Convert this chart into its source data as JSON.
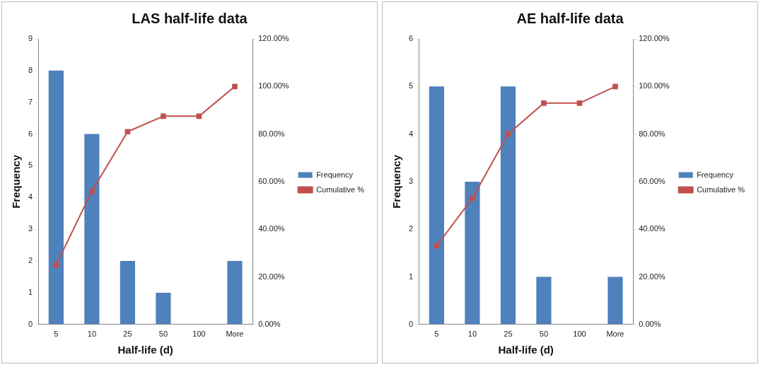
{
  "chart_data": [
    {
      "type": "bar",
      "title": "LAS half-life data",
      "xlabel": "Half-life (d)",
      "ylabel": "Frequency",
      "categories": [
        "5",
        "10",
        "25",
        "50",
        "100",
        "More"
      ],
      "series": [
        {
          "name": "Frequency",
          "color": "#4f81bd",
          "values": [
            8,
            6,
            2,
            1,
            0,
            2
          ]
        },
        {
          "name": "Cumulative %",
          "type": "line",
          "axis": "y2",
          "color": "#c0504d",
          "marker": "square",
          "values": [
            25,
            56,
            81,
            87.5,
            87.5,
            100
          ]
        }
      ],
      "ylim": [
        0,
        9
      ],
      "yticks": [
        0,
        1,
        2,
        3,
        4,
        5,
        6,
        7,
        8,
        9
      ],
      "y2lim": [
        0,
        120
      ],
      "y2ticks": [
        {
          "value": 0,
          "label": "0.00%"
        },
        {
          "value": 20,
          "label": "20.00%"
        },
        {
          "value": 40,
          "label": "40.00%"
        },
        {
          "value": 60,
          "label": "60.00%"
        },
        {
          "value": 80,
          "label": "80.00%"
        },
        {
          "value": 100,
          "label": "100.00%"
        },
        {
          "value": 120,
          "label": "120.00%"
        }
      ],
      "grid": false,
      "legend": "right"
    },
    {
      "type": "bar",
      "title": "AE half-life data",
      "xlabel": "Half-life (d)",
      "ylabel": "Frequency",
      "categories": [
        "5",
        "10",
        "25",
        "50",
        "100",
        "More"
      ],
      "series": [
        {
          "name": "Frequency",
          "color": "#4f81bd",
          "values": [
            5,
            3,
            5,
            1,
            0,
            1
          ]
        },
        {
          "name": "Cumulative %",
          "type": "line",
          "axis": "y2",
          "color": "#c0504d",
          "marker": "square",
          "values": [
            33,
            53,
            80,
            93,
            93,
            100
          ]
        }
      ],
      "ylim": [
        0,
        6
      ],
      "yticks": [
        0,
        1,
        2,
        3,
        4,
        5,
        6
      ],
      "y2lim": [
        0,
        120
      ],
      "y2ticks": [
        {
          "value": 0,
          "label": "0.00%"
        },
        {
          "value": 20,
          "label": "20.00%"
        },
        {
          "value": 40,
          "label": "40.00%"
        },
        {
          "value": 60,
          "label": "60.00%"
        },
        {
          "value": 80,
          "label": "80.00%"
        },
        {
          "value": 100,
          "label": "100.00%"
        },
        {
          "value": 120,
          "label": "120.00%"
        }
      ],
      "grid": false,
      "legend": "right"
    }
  ]
}
